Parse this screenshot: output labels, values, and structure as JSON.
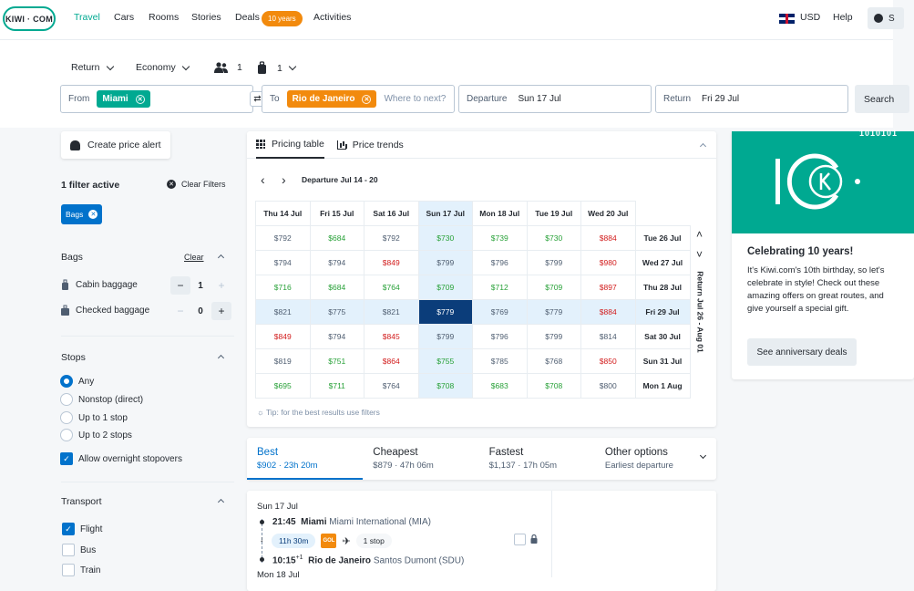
{
  "nav": {
    "logo": "KIWI · COM",
    "items": [
      "Travel",
      "Cars",
      "Rooms",
      "Stories",
      "Deals",
      "Activities"
    ],
    "deals_badge": "10 years",
    "currency": "USD",
    "help": "Help",
    "account_initial": "S"
  },
  "search": {
    "trip_type": "Return",
    "cabin": "Economy",
    "passengers": "1",
    "bags": "1",
    "from_label": "From",
    "from_value": "Miami",
    "to_label": "To",
    "to_value": "Rio de Janeiro",
    "to_placeholder": "Where to next?",
    "departure_label": "Departure",
    "departure_value": "Sun 17 Jul",
    "return_label": "Return",
    "return_value": "Fri 29 Jul",
    "search_button": "Search"
  },
  "sidebar": {
    "price_alert": "Create price alert",
    "filters_active": "1 filter active",
    "clear_filters": "Clear Filters",
    "active_chip": "Bags",
    "bags": {
      "title": "Bags",
      "clear": "Clear",
      "cabin_label": "Cabin baggage",
      "cabin_value": "1",
      "checked_label": "Checked baggage",
      "checked_value": "0"
    },
    "stops": {
      "title": "Stops",
      "options": [
        "Any",
        "Nonstop (direct)",
        "Up to 1 stop",
        "Up to 2 stops"
      ],
      "selected": "Any",
      "overnight": "Allow overnight stopovers"
    },
    "transport": {
      "title": "Transport",
      "options": [
        "Flight",
        "Bus",
        "Train"
      ]
    }
  },
  "pricing": {
    "tab_table": "Pricing table",
    "tab_trends": "Price trends",
    "departure_range": "Departure Jul 14 - 20",
    "return_label": "Return Jul 26 - Aug 01",
    "columns": [
      "Thu 14 Jul",
      "Fri 15 Jul",
      "Sat 16 Jul",
      "Sun 17 Jul",
      "Mon 18 Jul",
      "Tue 19 Jul",
      "Wed 20 Jul"
    ],
    "rows": [
      {
        "label": "Tue 26 Jul",
        "cells": [
          "$792",
          "$684",
          "$792",
          "$730",
          "$739",
          "$730",
          "$884"
        ],
        "tones": [
          "n",
          "g",
          "n",
          "g",
          "g",
          "g",
          "r"
        ]
      },
      {
        "label": "Wed 27 Jul",
        "cells": [
          "$794",
          "$794",
          "$849",
          "$799",
          "$796",
          "$799",
          "$980"
        ],
        "tones": [
          "n",
          "n",
          "r",
          "n",
          "n",
          "n",
          "r"
        ]
      },
      {
        "label": "Thu 28 Jul",
        "cells": [
          "$716",
          "$684",
          "$764",
          "$709",
          "$712",
          "$709",
          "$897"
        ],
        "tones": [
          "g",
          "g",
          "g",
          "g",
          "g",
          "g",
          "r"
        ]
      },
      {
        "label": "Fri 29 Jul",
        "cells": [
          "$821",
          "$775",
          "$821",
          "$779",
          "$769",
          "$779",
          "$884"
        ],
        "tones": [
          "n",
          "n",
          "n",
          "s",
          "n",
          "n",
          "r"
        ]
      },
      {
        "label": "Sat 30 Jul",
        "cells": [
          "$849",
          "$794",
          "$845",
          "$799",
          "$796",
          "$799",
          "$814"
        ],
        "tones": [
          "r",
          "n",
          "r",
          "n",
          "n",
          "n",
          "n"
        ]
      },
      {
        "label": "Sun 31 Jul",
        "cells": [
          "$819",
          "$751",
          "$864",
          "$755",
          "$785",
          "$768",
          "$850"
        ],
        "tones": [
          "n",
          "g",
          "r",
          "g",
          "n",
          "n",
          "r"
        ]
      },
      {
        "label": "Mon 1 Aug",
        "cells": [
          "$695",
          "$711",
          "$764",
          "$708",
          "$683",
          "$708",
          "$800"
        ],
        "tones": [
          "g",
          "g",
          "n",
          "g",
          "g",
          "g",
          "n"
        ]
      }
    ],
    "tip": "Tip: for the best results use filters"
  },
  "sort": [
    {
      "title": "Best",
      "sub": "$902 · 23h 20m"
    },
    {
      "title": "Cheapest",
      "sub": "$879 · 47h 06m"
    },
    {
      "title": "Fastest",
      "sub": "$1,137 · 17h 05m"
    },
    {
      "title": "Other options",
      "sub": "Earliest departure"
    }
  ],
  "result": {
    "date": "Sun 17 Jul",
    "dep_time": "21:45",
    "dep_city": "Miami",
    "dep_airport": "Miami International (MIA)",
    "duration": "11h 30m",
    "airline": "GOL",
    "stops": "1 stop",
    "arr_time": "10:15",
    "arr_plus": "+1",
    "arr_city": "Rio de Janeiro",
    "arr_airport": "Santos Dumont (SDU)",
    "next_date": "Mon 18 Jul"
  },
  "promo": {
    "hero_mark": "10K",
    "binary": "1010101",
    "title": "Celebrating 10 years!",
    "body": "It's Kiwi.com's 10th birthday, so let's celebrate in style! Check out these amazing offers on great routes, and give yourself a special gift.",
    "button": "See anniversary deals"
  },
  "colors": {
    "accent": "#00a991",
    "blue": "#0172cb",
    "orange": "#f28a0d",
    "green": "#28a138",
    "red": "#d21c1c",
    "selected": "#0b3d7a"
  }
}
